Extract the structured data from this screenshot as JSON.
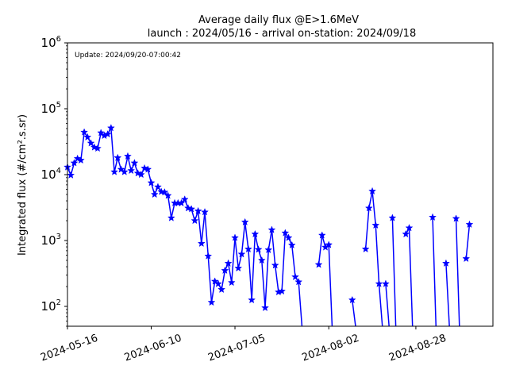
{
  "chart_data": {
    "type": "line",
    "title_line1": "Average daily flux @E>1.6MeV",
    "title_line2": "launch : 2024/05/16 - arrival on-station: 2024/09/18",
    "annotation": "Update: 2024/09/20-07:00:42",
    "ylabel": "Integrated flux (#/cm².s.sr)",
    "xlabel": "",
    "yscale": "log",
    "ylim": [
      50,
      1000000
    ],
    "xlim": [
      "2024-05-16",
      "2024-09-20"
    ],
    "grid": false,
    "series_color": "#0000ff",
    "marker": "star",
    "x_ticks": [
      "2024-05-16",
      "2024-06-10",
      "2024-07-05",
      "2024-08-02",
      "2024-08-28"
    ],
    "y_ticks": [
      {
        "base": "10",
        "exp": "2",
        "value": 100
      },
      {
        "base": "10",
        "exp": "3",
        "value": 1000
      },
      {
        "base": "10",
        "exp": "4",
        "value": 10000
      },
      {
        "base": "10",
        "exp": "5",
        "value": 100000
      },
      {
        "base": "10",
        "exp": "6",
        "value": 1000000
      }
    ],
    "series": [
      {
        "points": [
          [
            "2024-05-16",
            13000
          ],
          [
            "2024-05-17",
            9800
          ],
          [
            "2024-05-18",
            15000
          ],
          [
            "2024-05-19",
            17500
          ],
          [
            "2024-05-20",
            16500
          ],
          [
            "2024-05-21",
            44000
          ],
          [
            "2024-05-22",
            37000
          ],
          [
            "2024-05-23",
            30000
          ],
          [
            "2024-05-24",
            26000
          ],
          [
            "2024-05-25",
            25000
          ],
          [
            "2024-05-26",
            43000
          ],
          [
            "2024-05-27",
            39000
          ],
          [
            "2024-05-28",
            41000
          ],
          [
            "2024-05-29",
            51000
          ],
          [
            "2024-05-30",
            11000
          ],
          [
            "2024-05-31",
            18000
          ],
          [
            "2024-06-01",
            12000
          ],
          [
            "2024-06-02",
            11000
          ],
          [
            "2024-06-03",
            19000
          ],
          [
            "2024-06-04",
            11500
          ],
          [
            "2024-06-05",
            15000
          ],
          [
            "2024-06-06",
            10500
          ],
          [
            "2024-06-07",
            10000
          ],
          [
            "2024-06-08",
            12500
          ],
          [
            "2024-06-09",
            12000
          ],
          [
            "2024-06-10",
            7500
          ],
          [
            "2024-06-11",
            5000
          ],
          [
            "2024-06-12",
            6500
          ],
          [
            "2024-06-13",
            5500
          ],
          [
            "2024-06-14",
            5400
          ],
          [
            "2024-06-15",
            4800
          ],
          [
            "2024-06-16",
            2200
          ],
          [
            "2024-06-17",
            3700
          ],
          [
            "2024-06-18",
            3700
          ],
          [
            "2024-06-19",
            3700
          ],
          [
            "2024-06-20",
            4200
          ],
          [
            "2024-06-21",
            3100
          ],
          [
            "2024-06-22",
            3000
          ],
          [
            "2024-06-23",
            2000
          ],
          [
            "2024-06-24",
            2800
          ],
          [
            "2024-06-25",
            900
          ],
          [
            "2024-06-26",
            2700
          ],
          [
            "2024-06-27",
            580
          ],
          [
            "2024-06-28",
            115
          ],
          [
            "2024-06-29",
            240
          ],
          [
            "2024-06-30",
            220
          ],
          [
            "2024-07-01",
            180
          ],
          [
            "2024-07-02",
            350
          ],
          [
            "2024-07-03",
            450
          ],
          [
            "2024-07-04",
            230
          ],
          [
            "2024-07-05",
            1100
          ],
          [
            "2024-07-06",
            380
          ],
          [
            "2024-07-07",
            620
          ],
          [
            "2024-07-08",
            1900
          ],
          [
            "2024-07-09",
            740
          ],
          [
            "2024-07-10",
            125
          ],
          [
            "2024-07-11",
            1250
          ],
          [
            "2024-07-12",
            730
          ],
          [
            "2024-07-13",
            500
          ],
          [
            "2024-07-14",
            95
          ],
          [
            "2024-07-15",
            720
          ],
          [
            "2024-07-16",
            1450
          ],
          [
            "2024-07-17",
            420
          ],
          [
            "2024-07-18",
            165
          ],
          [
            "2024-07-19",
            170
          ],
          [
            "2024-07-20",
            1300
          ],
          [
            "2024-07-21",
            1100
          ],
          [
            "2024-07-22",
            850
          ],
          [
            "2024-07-23",
            280
          ],
          [
            "2024-07-24",
            235
          ],
          [
            "2024-07-25",
            null
          ],
          [
            "2024-07-30",
            430
          ],
          [
            "2024-07-31",
            1200
          ],
          [
            "2024-08-01",
            790
          ],
          [
            "2024-08-02",
            860
          ],
          [
            "2024-08-03",
            null
          ],
          [
            "2024-08-09",
            125
          ],
          [
            "2024-08-10",
            null
          ],
          [
            "2024-08-13",
            740
          ],
          [
            "2024-08-14",
            3100
          ],
          [
            "2024-08-15",
            5600
          ],
          [
            "2024-08-16",
            1700
          ],
          [
            "2024-08-17",
            220
          ],
          [
            "2024-08-18",
            null
          ],
          [
            "2024-08-19",
            220
          ],
          [
            "2024-08-20",
            null
          ],
          [
            "2024-08-21",
            2200
          ],
          [
            "2024-08-22",
            null
          ],
          [
            "2024-08-25",
            1250
          ],
          [
            "2024-08-26",
            1550
          ],
          [
            "2024-08-27",
            null
          ],
          [
            "2024-09-02",
            2250
          ],
          [
            "2024-09-03",
            null
          ],
          [
            "2024-09-06",
            450
          ],
          [
            "2024-09-07",
            null
          ],
          [
            "2024-09-09",
            2150
          ],
          [
            "2024-09-10",
            null
          ],
          [
            "2024-09-12",
            530
          ],
          [
            "2024-09-13",
            1750
          ]
        ]
      }
    ]
  }
}
